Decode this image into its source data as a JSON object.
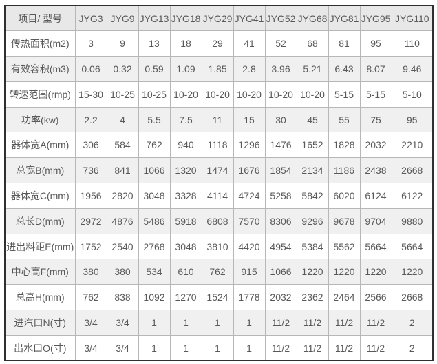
{
  "chart_data": {
    "type": "table",
    "columns": [
      "项目/ 型号",
      "JYG3",
      "JYG9",
      "JYG13",
      "JYG18",
      "JYG29",
      "JYG41",
      "JYG52",
      "JYG68",
      "JYG81",
      "JYG95",
      "JYG110"
    ],
    "rows": [
      {
        "label": "传热面积(m2)",
        "values": [
          "3",
          "9",
          "13",
          "18",
          "29",
          "41",
          "52",
          "68",
          "81",
          "95",
          "110"
        ]
      },
      {
        "label": "有效容积(m3)",
        "values": [
          "0.06",
          "0.32",
          "0.59",
          "1.09",
          "1.85",
          "2.8",
          "3.96",
          "5.21",
          "6.43",
          "8.07",
          "9.46"
        ]
      },
      {
        "label": "转速范围(rmp)",
        "values": [
          "15-30",
          "10-25",
          "10-25",
          "10-20",
          "10-20",
          "10-20",
          "10-20",
          "10-20",
          "5-15",
          "5-15",
          "5-10"
        ]
      },
      {
        "label": "功率(kw)",
        "values": [
          "2.2",
          "4",
          "5.5",
          "7.5",
          "11",
          "15",
          "30",
          "45",
          "55",
          "75",
          "95"
        ]
      },
      {
        "label": "器体宽A(mm)",
        "values": [
          "306",
          "584",
          "762",
          "940",
          "1118",
          "1296",
          "1476",
          "1652",
          "1828",
          "2032",
          "2210"
        ]
      },
      {
        "label": "总宽B(mm)",
        "values": [
          "736",
          "841",
          "1066",
          "1320",
          "1474",
          "1676",
          "1854",
          "2134",
          "1186",
          "2438",
          "2668"
        ]
      },
      {
        "label": "器体宽C(mm)",
        "values": [
          "1956",
          "2820",
          "3048",
          "3328",
          "4114",
          "4724",
          "5258",
          "5842",
          "6020",
          "6124",
          "6122"
        ]
      },
      {
        "label": "总长D(mm)",
        "values": [
          "2972",
          "4876",
          "5486",
          "5918",
          "6808",
          "7570",
          "8306",
          "9296",
          "9678",
          "9704",
          "9880"
        ]
      },
      {
        "label": "进出料距E(mm)",
        "values": [
          "1752",
          "2540",
          "2768",
          "3048",
          "3810",
          "4420",
          "4954",
          "5384",
          "5562",
          "5664",
          "5664"
        ]
      },
      {
        "label": "中心高F(mm)",
        "values": [
          "380",
          "380",
          "534",
          "610",
          "762",
          "915",
          "1066",
          "1220",
          "1220",
          "1220",
          "1220"
        ]
      },
      {
        "label": "总高H(mm)",
        "values": [
          "762",
          "838",
          "1092",
          "1270",
          "1524",
          "1778",
          "2032",
          "2362",
          "2464",
          "2566",
          "2668"
        ]
      },
      {
        "label": "进汽口N(寸)",
        "values": [
          "3/4",
          "3/4",
          "1",
          "1",
          "1",
          "1",
          "11/2",
          "11/2",
          "11/2",
          "11/2",
          "2"
        ]
      },
      {
        "label": "出水口O(寸)",
        "values": [
          "3/4",
          "3/4",
          "1",
          "1",
          "1",
          "1",
          "11/2",
          "11/2",
          "11/2",
          "11/2",
          "2"
        ]
      }
    ],
    "layout_hints": {
      "header_row_shaded": true,
      "alternating_shaded_rows": "even data rows (2nd, 4th, ...)",
      "grid": "on"
    }
  },
  "colors": {
    "header_bg": "#e8e8e8",
    "alt_row_bg": "#f0f0f0",
    "row_bg": "#ffffff",
    "grid_border": "#b7b7b7",
    "outer_border": "#2f2f2f",
    "text": "#58595b",
    "page_bg": "#ffffff"
  }
}
